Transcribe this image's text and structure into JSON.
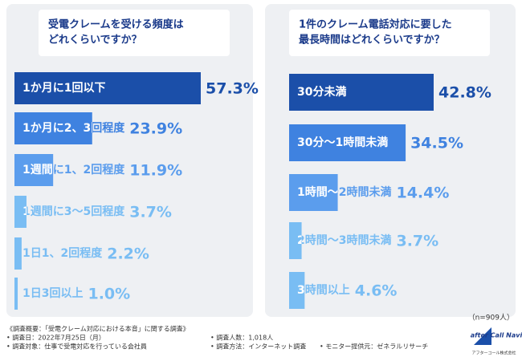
{
  "chart_data": [
    {
      "type": "hbar",
      "title": [
        "受電クレームを受ける頻度は",
        "どれくらいですか？"
      ],
      "categories": [
        "1か月に1回以下",
        "1か月に2、3回程度",
        "1週間に1、2回程度",
        "1週間に3〜5回程度",
        "1日1、2回程度",
        "1日3回以上"
      ],
      "values": [
        57.3,
        23.9,
        11.9,
        3.7,
        2.2,
        1.0
      ],
      "value_labels": [
        "57.3%",
        "23.9%",
        "11.9%",
        "3.7%",
        "2.2%",
        "1.0%"
      ],
      "colors": [
        "#1b4fa9",
        "#3f82e0",
        "#5b9ded",
        "#79bdf3",
        "#79bdf3",
        "#79bdf3"
      ]
    },
    {
      "type": "hbar",
      "title": [
        "1件のクレーム電話対応に要した",
        "最長時間はどれくらいですか？"
      ],
      "categories": [
        "30分未満",
        "30分〜1時間未満",
        "1時間〜2時間未満",
        "2時間〜3時間未満",
        "3時間以上"
      ],
      "values": [
        42.8,
        34.5,
        14.4,
        3.7,
        4.6
      ],
      "value_labels": [
        "42.8%",
        "34.5%",
        "14.4%",
        "3.7%",
        "4.6%"
      ],
      "colors": [
        "#1b4fa9",
        "#3f82e0",
        "#5b9ded",
        "#79bdf3",
        "#79bdf3"
      ]
    }
  ],
  "sample": "（n=909人）",
  "footer": {
    "survey": "《調査概要：「受電クレーム対応における本音」に関する調査》",
    "date": "• 調査日：2022年7月25日（月）",
    "count": "• 調査人数：1,018人",
    "target": "• 調査対象：仕事で受電対応を行っている会社員",
    "method": "• 調査方法：インターネット調査",
    "provider": "• モニター提供元：ゼネラルリサーチ"
  },
  "logo": {
    "name": "after Call Navi",
    "company": "アフターコール株式会社"
  }
}
